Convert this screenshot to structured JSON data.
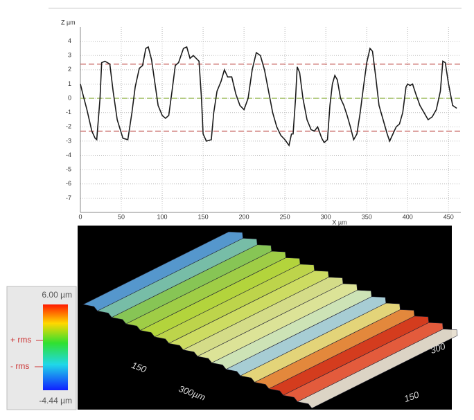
{
  "chart_data": {
    "type": "line",
    "y_label": "Z µm",
    "x_label": "X µm",
    "x": [
      0,
      3,
      8,
      14,
      18,
      20,
      24,
      26,
      30,
      36,
      40,
      45,
      52,
      58,
      63,
      67,
      72,
      76,
      80,
      83,
      87,
      90,
      95,
      100,
      104,
      108,
      112,
      116,
      120,
      126,
      130,
      134,
      138,
      145,
      148,
      150,
      154,
      160,
      163,
      167,
      172,
      176,
      180,
      185,
      190,
      195,
      200,
      205,
      210,
      215,
      220,
      225,
      230,
      235,
      240,
      245,
      250,
      255,
      258,
      260,
      263,
      265,
      268,
      272,
      277,
      282,
      286,
      290,
      295,
      298,
      302,
      305,
      308,
      311,
      314,
      318,
      322,
      326,
      330,
      334,
      338,
      342,
      346,
      350,
      354,
      357,
      361,
      365,
      370,
      375,
      378,
      382,
      386,
      390,
      394,
      398,
      400,
      403,
      406,
      410,
      415,
      420,
      425,
      430,
      435,
      440,
      443,
      446,
      450,
      455,
      460
    ],
    "series": [
      {
        "color": "#1a1a1a",
        "values": [
          1.0,
          0.3,
          -0.8,
          -2.3,
          -2.8,
          -2.9,
          0,
          2.5,
          2.6,
          2.4,
          0.5,
          -1.5,
          -2.8,
          -2.9,
          -1,
          0.8,
          2.1,
          2.3,
          3.5,
          3.6,
          2.7,
          1.5,
          -0.5,
          -1.2,
          -1.4,
          -1.2,
          0.5,
          2.3,
          2.5,
          3.5,
          3.6,
          2.8,
          3.0,
          2.6,
          0,
          -2.5,
          -3.0,
          -2.9,
          -1,
          0.5,
          1.2,
          2.0,
          1.5,
          1.5,
          0.3,
          -0.5,
          -0.8,
          0,
          2.0,
          3.2,
          3.0,
          2.0,
          0.5,
          -1,
          -2,
          -2.6,
          -2.9,
          -3.3,
          -2.5,
          -2.5,
          0,
          2.2,
          1.8,
          0,
          -1.5,
          -2.2,
          -2.3,
          -2.0,
          -2.8,
          -3.1,
          -2.9,
          -0.5,
          1.0,
          1.6,
          1.3,
          0,
          -0.5,
          -1.2,
          -2.0,
          -2.9,
          -2.5,
          -1,
          0.8,
          2.5,
          3.5,
          3.3,
          1.5,
          -0.5,
          -1.5,
          -2.5,
          -3.0,
          -2.5,
          -2.0,
          -1.8,
          -1.0,
          0.8,
          1.0,
          0.9,
          1.0,
          0.3,
          -0.5,
          -1.0,
          -1.5,
          -1.3,
          -0.8,
          0.5,
          2.6,
          2.5,
          1.0,
          -0.5,
          -0.7
        ]
      }
    ],
    "reference_lines": [
      {
        "value": 2.4,
        "color": "#c0504d"
      },
      {
        "value": 0,
        "color": "#9bbb59"
      },
      {
        "value": -2.3,
        "color": "#c0504d"
      }
    ],
    "xlim": [
      0,
      465
    ],
    "ylim": [
      -8,
      5
    ],
    "xticks": [
      0,
      50,
      100,
      150,
      200,
      250,
      300,
      350,
      400,
      450
    ],
    "yticks": [
      4,
      3,
      2,
      1,
      0,
      -1,
      -2,
      -3,
      -4,
      -5,
      -6,
      -7
    ],
    "grid": true
  },
  "surface_view": {
    "axis_labels": [
      "150",
      "300µm",
      "300",
      "150"
    ]
  },
  "color_scale": {
    "max": "6.00 µm",
    "plus_rms": "+ rms",
    "minus_rms": "- rms",
    "min": "-4.44 µm"
  }
}
